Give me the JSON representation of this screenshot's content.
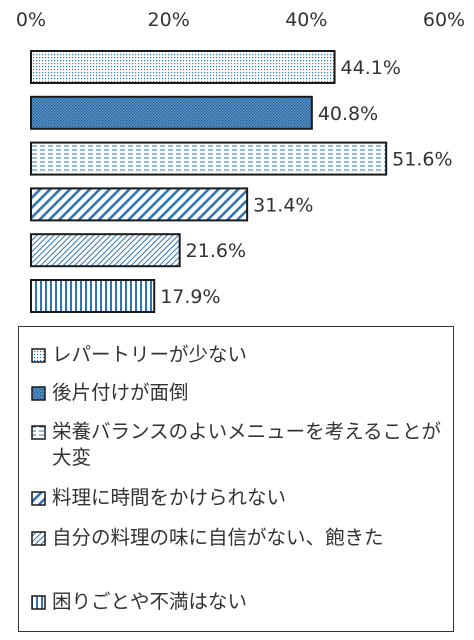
{
  "chart_data": {
    "type": "bar",
    "orientation": "horizontal",
    "categories": [
      "レパートリーが少ない",
      "後片付けが面倒",
      "栄養バランスのよいメニューを考えることが大変",
      "料理に時間をかけられない",
      "自分の料理の味に自信がない、飽きた",
      "困りごとや不満はない"
    ],
    "values": [
      44.1,
      40.8,
      51.6,
      31.4,
      21.6,
      17.9
    ],
    "data_labels": [
      "44.1%",
      "40.8%",
      "51.6%",
      "31.4%",
      "21.6%",
      "17.9%"
    ],
    "xlim": [
      0,
      60
    ],
    "x_ticks": [
      0,
      20,
      40,
      60
    ],
    "x_tick_labels": [
      "0%",
      "20%",
      "40%",
      "60%"
    ],
    "x_axis_position": "top",
    "grid": false,
    "legend_position": "bottom",
    "patterns": [
      "fine-dots",
      "dense-dots",
      "dashed-horizontal",
      "diagonal-wide",
      "diagonal-fine",
      "vertical-lines"
    ],
    "colors": {
      "accent": "#2E75B6",
      "outline": "#1a1a1a",
      "text": "#333333"
    }
  }
}
